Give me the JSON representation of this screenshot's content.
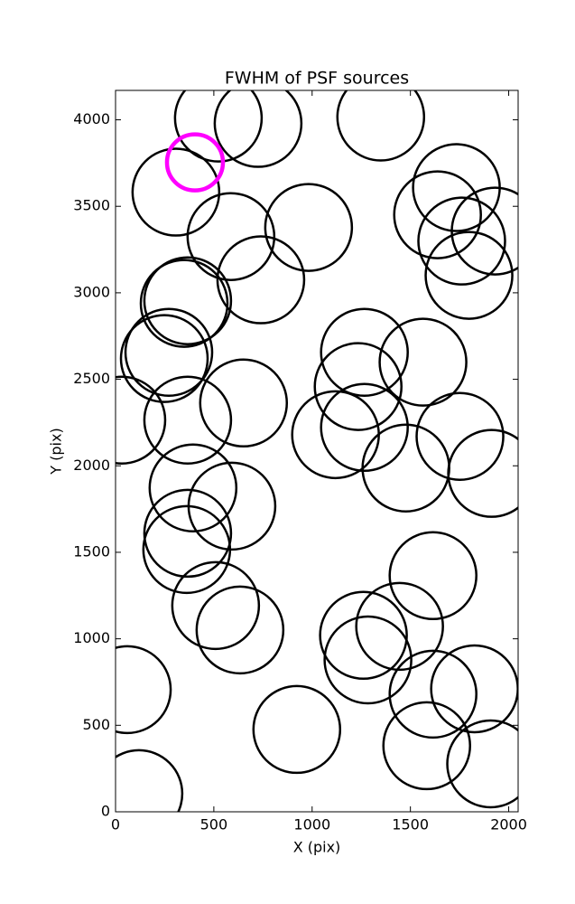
{
  "chart_data": {
    "type": "scatter",
    "title": "FWHM of PSF sources",
    "x_label": "X (pix)",
    "y_label": "Y (pix)",
    "xlim": [
      0,
      2048
    ],
    "ylim": [
      0,
      4170
    ],
    "xticks": [
      0,
      500,
      1000,
      1500,
      2000
    ],
    "yticks": [
      0,
      500,
      1000,
      1500,
      2000,
      2500,
      3000,
      3500,
      4000
    ],
    "series": [
      {
        "color": "#000000",
        "marker": "open-circle",
        "marker_radius": 48,
        "line_width": 2.5,
        "x": [
          523,
          725,
          1349,
          307,
          587,
          982,
          739,
          1734,
          1638,
          1761,
          1931,
          1798,
          349,
          367,
          271,
          248,
          32,
          367,
          651,
          1266,
          1564,
          1234,
          1266,
          1119,
          1477,
          1752,
          1913,
          394,
          592,
          367,
          362,
          509,
          633,
          1615,
          1445,
          1261,
          1284,
          1615,
          1826,
          1583,
          1908,
          922,
          60,
          119
        ],
        "values": [
          4010,
          3979,
          4016,
          3582,
          3325,
          3378,
          3075,
          3608,
          3451,
          3299,
          3357,
          3101,
          2939,
          2954,
          2656,
          2620,
          2264,
          2264,
          2363,
          2656,
          2599,
          2458,
          2222,
          2180,
          1987,
          2170,
          1956,
          1872,
          1767,
          1610,
          1516,
          1192,
          1051,
          1365,
          1072,
          1020,
          878,
          680,
          711,
          382,
          277,
          476,
          706,
          105
        ]
      },
      {
        "color": "#ff00ff",
        "marker": "open-circle",
        "marker_radius": 31,
        "line_width": 4.5,
        "x": [
          404
        ],
        "values": [
          3754
        ]
      }
    ]
  }
}
